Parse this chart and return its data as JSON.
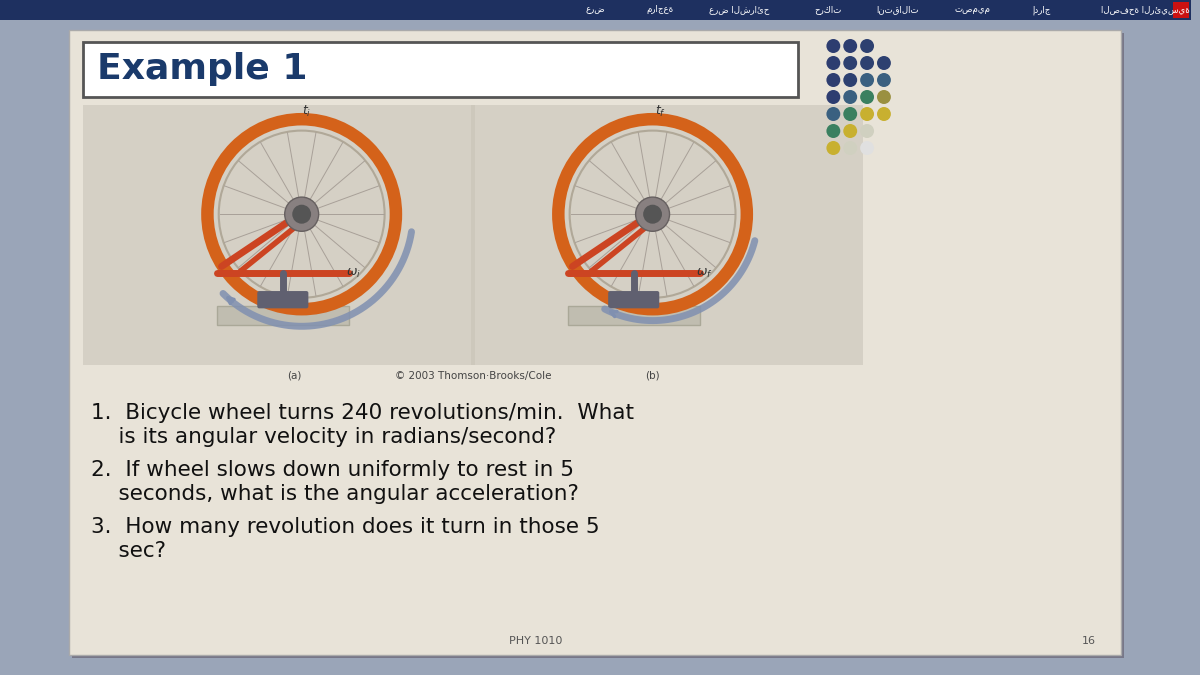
{
  "title": "Example 1",
  "question1": "1.  Bicycle wheel turns 240 revolutions/min.  What\n    is its angular velocity in radians/second?",
  "question2": "2.  If wheel slows down uniformly to rest in 5\n    seconds, what is the angular acceleration?",
  "question3": "3.  How many revolution does it turn in those 5\n    sec?",
  "caption": "© 2003 Thomson·Brooks/Cole",
  "caption_a": "(a)",
  "caption_b": "(b)",
  "footer": "PHY 1010",
  "page_num": "16",
  "outer_bg": "#9aa5b8",
  "slide_bg": "#e8e3d8",
  "title_text_color": "#1a3a6b",
  "body_text_color": "#111111",
  "img_bg": "#cdc8bc",
  "navbar_bg": "#1e3060",
  "font_size_title": 26,
  "font_size_question": 15.5,
  "font_size_caption": 7.5,
  "font_size_footer": 8,
  "dot_rows": [
    [
      "#2d3d70",
      "#2d3d70",
      "#2d4070"
    ],
    [
      "#2d3d70",
      "#2d4070",
      "#2d4070",
      "#2d4070"
    ],
    [
      "#2d3d70",
      "#2d4070",
      "#3a6080",
      "#3a6080"
    ],
    [
      "#2d3d70",
      "#3a6080",
      "#3a8060",
      "#9a9040"
    ],
    [
      "#3a6080",
      "#3a8060",
      "#c8b030",
      "#c8b030"
    ],
    [
      "#3a8060",
      "#c8b030",
      "#d0d0c0"
    ],
    [
      "#c8b030",
      "#d0d0c0",
      "#e0e0e0"
    ]
  ]
}
